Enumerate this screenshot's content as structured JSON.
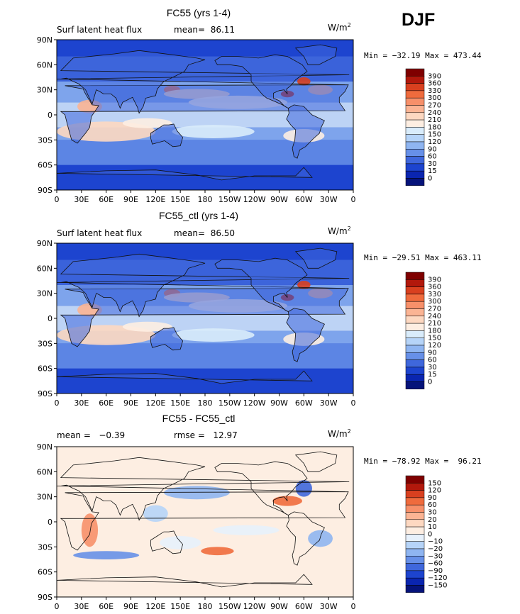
{
  "season_label": "DJF",
  "chart_data": [
    {
      "type": "heatmap",
      "title": "FC55 (yrs 1-4)",
      "subtitle_left": "Surf latent heat flux",
      "subtitle_stat": "mean=  86.11",
      "units": "W/m",
      "units_power": "2",
      "min_max": "Min = −32.19 Max = 473.44",
      "xticks": [
        "0",
        "30E",
        "60E",
        "90E",
        "120E",
        "150E",
        "180",
        "150W",
        "120W",
        "90W",
        "60W",
        "30W",
        "0"
      ],
      "yticks": [
        "90N",
        "60N",
        "30N",
        "0",
        "30S",
        "60S",
        "90S"
      ],
      "colorbar_labels": [
        "390",
        "360",
        "330",
        "300",
        "270",
        "240",
        "210",
        "180",
        "150",
        "120",
        "90",
        "60",
        "30",
        "15",
        "0"
      ],
      "colors": [
        "#7f0000",
        "#b2180c",
        "#d9401f",
        "#ef6b3d",
        "#f7906a",
        "#fbb494",
        "#fdd8c1",
        "#fdeee2",
        "#d9ecfb",
        "#b6d4f8",
        "#8fb5f1",
        "#6790e8",
        "#3f67dc",
        "#1d44cf",
        "#0a25b0",
        "#05137a"
      ]
    },
    {
      "type": "heatmap",
      "title": "FC55_ctl (yrs 1-4)",
      "subtitle_left": "Surf latent heat flux",
      "subtitle_stat": "mean=  86.50",
      "units": "W/m",
      "units_power": "2",
      "min_max": "Min = −29.51 Max = 463.11",
      "xticks": [
        "0",
        "30E",
        "60E",
        "90E",
        "120E",
        "150E",
        "180",
        "150W",
        "120W",
        "90W",
        "60W",
        "30W",
        "0"
      ],
      "yticks": [
        "90N",
        "60N",
        "30N",
        "0",
        "30S",
        "60S",
        "90S"
      ],
      "colorbar_labels": [
        "390",
        "360",
        "330",
        "300",
        "270",
        "240",
        "210",
        "180",
        "150",
        "120",
        "90",
        "60",
        "30",
        "15",
        "0"
      ],
      "colors": [
        "#7f0000",
        "#b2180c",
        "#d9401f",
        "#ef6b3d",
        "#f7906a",
        "#fbb494",
        "#fdd8c1",
        "#fdeee2",
        "#d9ecfb",
        "#b6d4f8",
        "#8fb5f1",
        "#6790e8",
        "#3f67dc",
        "#1d44cf",
        "#0a25b0",
        "#05137a"
      ]
    },
    {
      "type": "heatmap",
      "title": "FC55 - FC55_ctl",
      "subtitle_left": "mean =   −0.39",
      "subtitle_stat": "rmse =   12.97",
      "units": "W/m",
      "units_power": "2",
      "min_max": "Min = −78.92 Max =  96.21",
      "xticks": [
        "0",
        "30E",
        "60E",
        "90E",
        "120E",
        "150E",
        "180",
        "150W",
        "120W",
        "90W",
        "60W",
        "30W",
        "0"
      ],
      "yticks": [
        "90N",
        "60N",
        "30N",
        "0",
        "30S",
        "60S",
        "90S"
      ],
      "colorbar_labels": [
        "150",
        "120",
        "90",
        "60",
        "30",
        "20",
        "10",
        "0",
        "−10",
        "−20",
        "−30",
        "−60",
        "−90",
        "−120",
        "−150"
      ],
      "colors": [
        "#7f0000",
        "#b2180c",
        "#d9401f",
        "#ef6b3d",
        "#f7906a",
        "#fbb494",
        "#fdd8c1",
        "#fdeee2",
        "#e7f1fc",
        "#b6d4f8",
        "#8fb5f1",
        "#6790e8",
        "#3f67dc",
        "#1d44cf",
        "#0a25b0",
        "#05137a"
      ]
    }
  ]
}
